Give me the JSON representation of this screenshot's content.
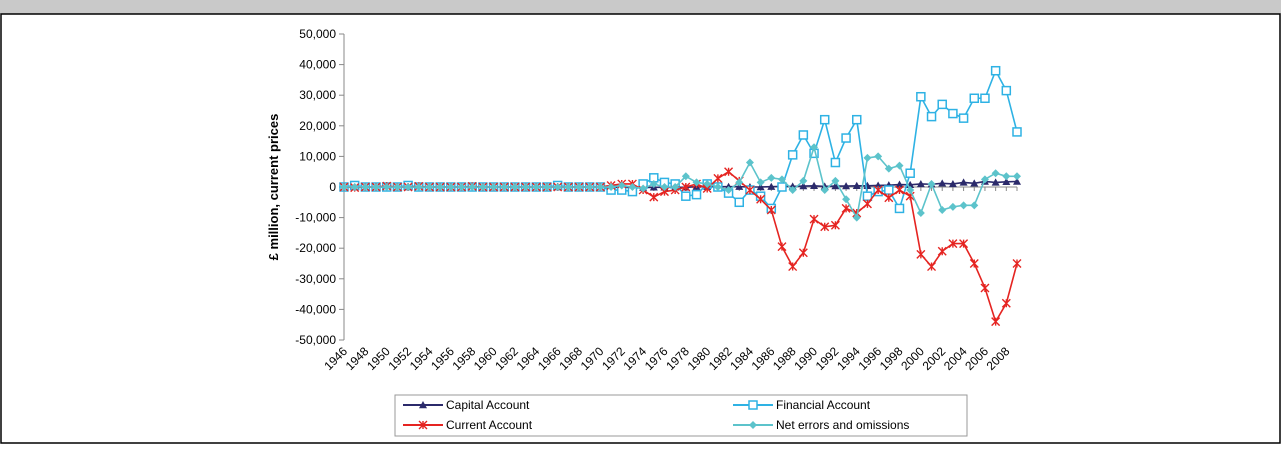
{
  "chart_data": {
    "type": "line",
    "y_label": "£ million, current prices",
    "categories": [
      "1946",
      null,
      "1948",
      null,
      "1950",
      null,
      "1952",
      null,
      "1954",
      null,
      "1956",
      null,
      "1958",
      null,
      "1960",
      null,
      "1962",
      null,
      "1964",
      null,
      "1966",
      null,
      "1968",
      null,
      "1970",
      null,
      "1972",
      null,
      "1974",
      null,
      "1976",
      null,
      "1978",
      null,
      "1980",
      null,
      "1982",
      null,
      "1984",
      null,
      "1986",
      null,
      "1988",
      null,
      "1990",
      null,
      "1992",
      null,
      "1994",
      null,
      "1996",
      null,
      "1998",
      null,
      "2000",
      null,
      "2002",
      null,
      "2004",
      null,
      "2006",
      null,
      "2008",
      null
    ],
    "ylim": [
      -50000,
      50000
    ],
    "yticks": [
      {
        "value": -50000,
        "label": "-50,000"
      },
      {
        "value": -40000,
        "label": "-40,000"
      },
      {
        "value": -30000,
        "label": "-30,000"
      },
      {
        "value": -20000,
        "label": "-20,000"
      },
      {
        "value": -10000,
        "label": "-10,000"
      },
      0,
      {
        "value": 10000,
        "label": "10,000"
      },
      {
        "value": 20000,
        "label": "20,000"
      },
      {
        "value": 30000,
        "label": "30,000"
      },
      {
        "value": 40000,
        "label": "40,000"
      },
      {
        "value": 50000,
        "label": "50,000"
      }
    ],
    "grid": false,
    "series": [
      {
        "name": "Capital Account",
        "color": "#2b2a6b",
        "marker": "triangle",
        "values": [
          0,
          0,
          0,
          0,
          0,
          0,
          0,
          0,
          0,
          0,
          0,
          0,
          0,
          0,
          0,
          0,
          0,
          0,
          0,
          0,
          0,
          0,
          0,
          0,
          0,
          -100,
          -100,
          -100,
          -200,
          -100,
          -100,
          -100,
          -100,
          100,
          100,
          100,
          100,
          100,
          0,
          0,
          100,
          200,
          200,
          300,
          400,
          200,
          300,
          300,
          400,
          400,
          500,
          600,
          800,
          700,
          1000,
          900,
          1200,
          1000,
          1500,
          1200,
          1800,
          1500,
          1700,
          1800
        ]
      },
      {
        "name": "Financial Account",
        "color": "#2eb2e4",
        "marker": "square",
        "values": [
          0,
          500,
          0,
          0,
          0,
          0,
          500,
          0,
          0,
          0,
          0,
          0,
          0,
          0,
          0,
          0,
          0,
          0,
          0,
          0,
          500,
          0,
          0,
          0,
          0,
          -1000,
          -1000,
          -1500,
          1000,
          3000,
          1500,
          1000,
          -3000,
          -2500,
          1000,
          0,
          -2000,
          -5000,
          -1000,
          -3000,
          -7000,
          0,
          10500,
          17000,
          11000,
          22000,
          8000,
          16000,
          22000,
          -3000,
          -1500,
          -1000,
          -7000,
          4500,
          29500,
          23000,
          27000,
          24000,
          22500,
          29000,
          29000,
          38000,
          31500,
          18000
        ]
      },
      {
        "name": "Current Account",
        "color": "#e52421",
        "marker": "star",
        "values": [
          0,
          -200,
          0,
          0,
          300,
          0,
          0,
          200,
          0,
          0,
          0,
          0,
          200,
          0,
          0,
          0,
          0,
          0,
          0,
          0,
          0,
          0,
          0,
          0,
          0,
          500,
          1000,
          1000,
          -1000,
          -3300,
          -1500,
          -1000,
          0,
          1000,
          -500,
          2800,
          5000,
          2000,
          -1000,
          -4000,
          -7500,
          -19500,
          -26000,
          -21500,
          -10500,
          -13000,
          -12500,
          -7000,
          -8500,
          -5500,
          -1000,
          -3500,
          -1000,
          -3000,
          -22000,
          -26000,
          -21000,
          -18500,
          -18500,
          -25000,
          -33000,
          -44000,
          -38000,
          -25000
        ]
      },
      {
        "name": "Net errors and omissions",
        "color": "#5cc3cb",
        "marker": "diamond",
        "values": [
          0,
          0,
          0,
          0,
          0,
          0,
          0,
          0,
          0,
          0,
          0,
          0,
          0,
          0,
          0,
          0,
          0,
          0,
          0,
          0,
          0,
          0,
          0,
          0,
          0,
          0,
          500,
          0,
          -500,
          1000,
          0,
          0,
          3500,
          1500,
          1000,
          0,
          -1000,
          1500,
          8000,
          1500,
          3000,
          2500,
          -1000,
          2000,
          13000,
          -1000,
          2000,
          -4000,
          -10000,
          9500,
          10000,
          6000,
          7000,
          -1000,
          -8500,
          1000,
          -7500,
          -6500,
          -6000,
          -6000,
          2500,
          4500,
          3500,
          3500
        ]
      }
    ]
  }
}
